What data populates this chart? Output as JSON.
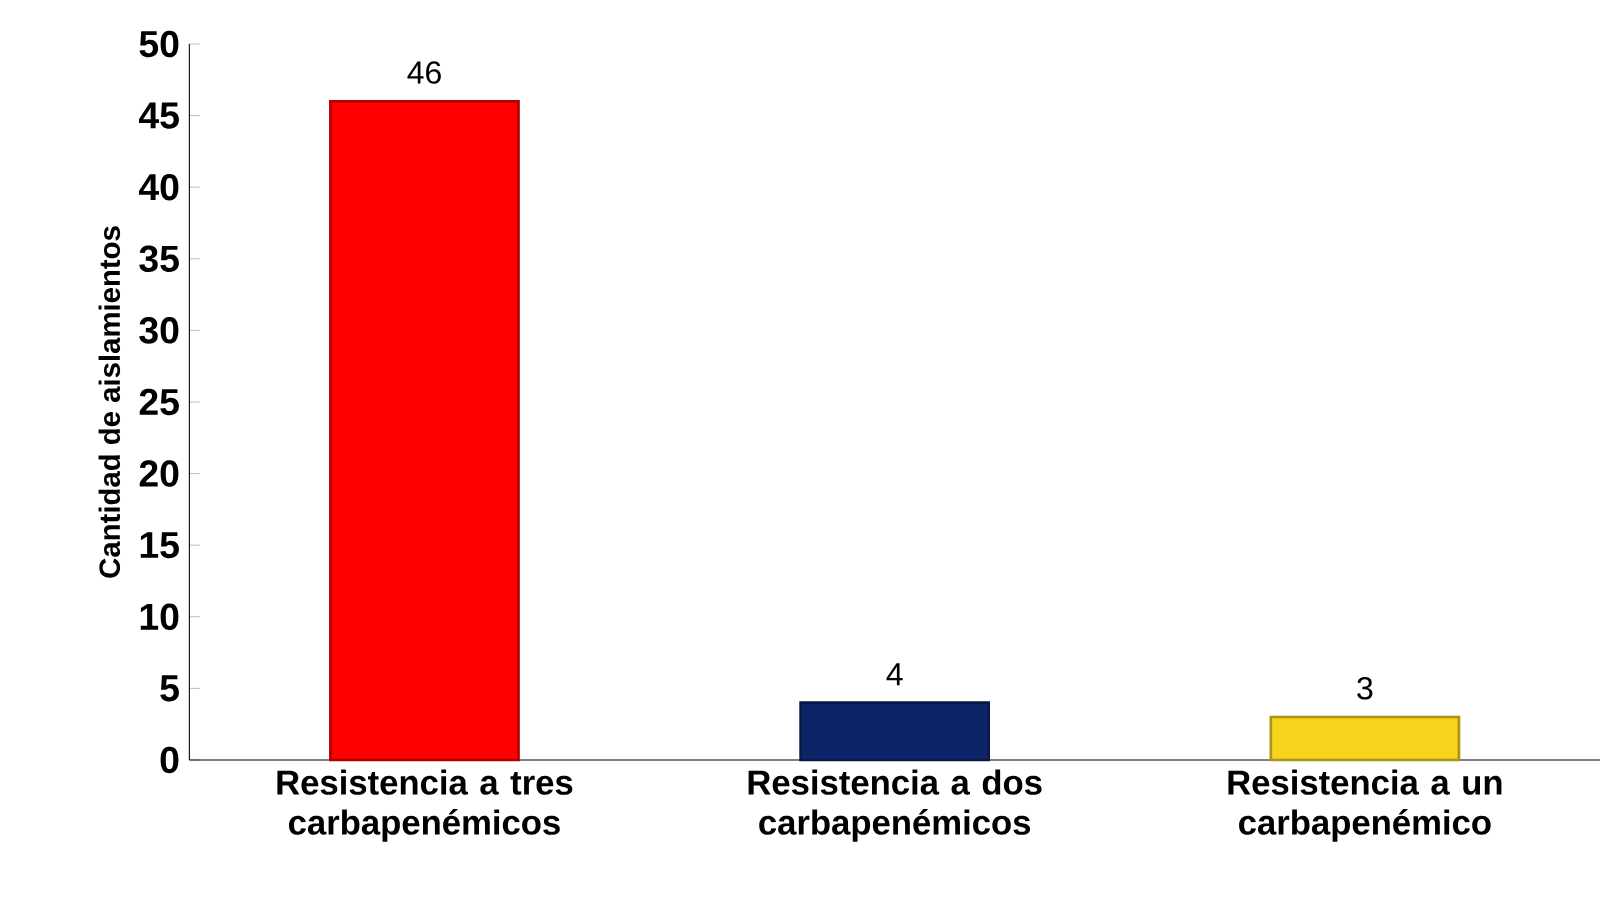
{
  "chart_data": {
    "type": "bar",
    "ylabel": "Cantidad de aislamientos",
    "categories": [
      "Resistencia a tres carbapenémicos",
      "Resistencia a dos carbapenémicos",
      "Resistencia a un carbapenémico"
    ],
    "values": [
      46,
      4,
      3
    ],
    "colors": [
      "#ff0000",
      "#0d2468",
      "#f7d21e"
    ],
    "ylim": [
      0,
      50
    ],
    "yticks": [
      0,
      5,
      10,
      15,
      20,
      25,
      30,
      35,
      40,
      45,
      50
    ],
    "data_labels": true,
    "grid": false
  }
}
